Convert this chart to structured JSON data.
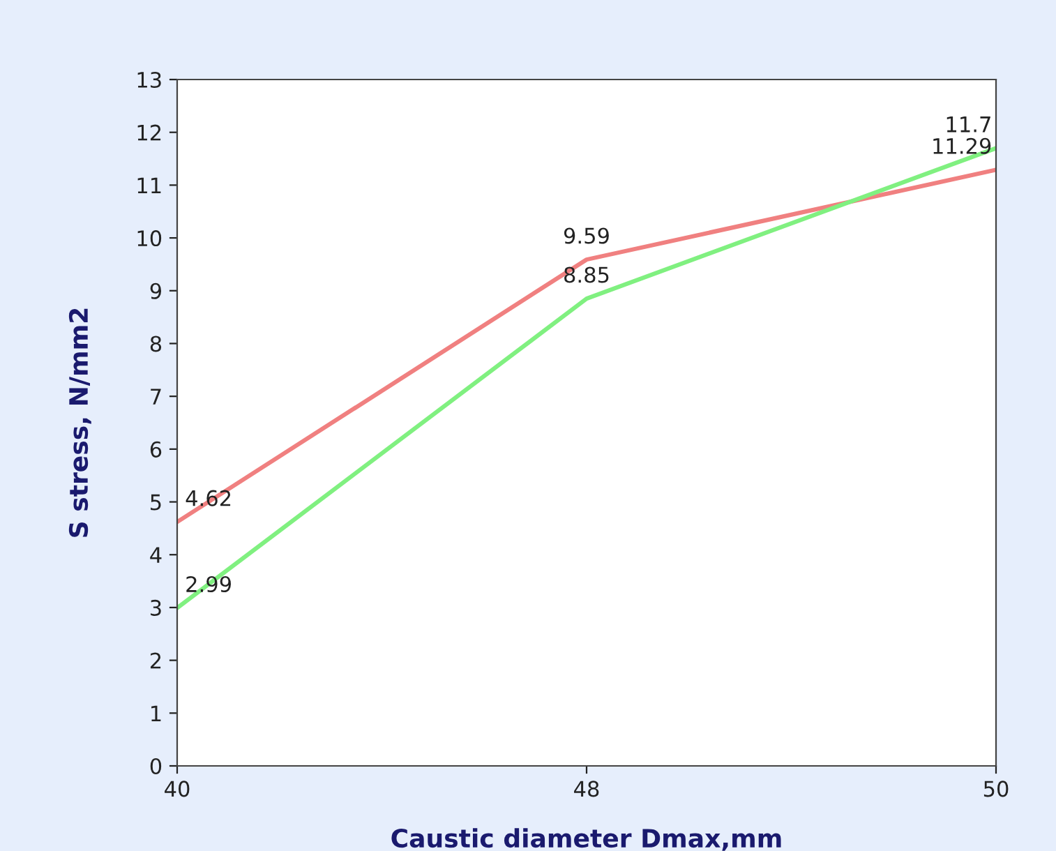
{
  "chart_data": {
    "type": "line",
    "xlabel": "Caustic diameter Dmax,mm",
    "ylabel": "S stress, N/mm2",
    "categories": [
      "40",
      "48",
      "50"
    ],
    "series": [
      {
        "color": "#f08080",
        "values": [
          4.62,
          9.59,
          11.29
        ]
      },
      {
        "color": "#80f080",
        "values": [
          2.99,
          8.85,
          11.7
        ]
      }
    ],
    "ylim": [
      0,
      13
    ],
    "yticks": [
      0,
      1,
      2,
      3,
      4,
      5,
      6,
      7,
      8,
      9,
      10,
      11,
      12,
      13
    ],
    "data_labels": true,
    "grid": false,
    "legend": false,
    "marker": "none",
    "line_style": "solid"
  }
}
